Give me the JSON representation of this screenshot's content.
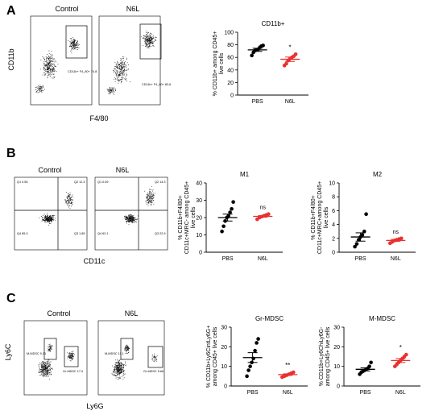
{
  "panels": [
    {
      "letter": "A"
    },
    {
      "letter": "B"
    },
    {
      "letter": "C"
    }
  ],
  "flow": {
    "A": {
      "conditions": [
        "Control",
        "N6L"
      ],
      "xlabel": "F4/80",
      "ylabel": "CD11b",
      "gate_labels": [
        "CD11b+ F4_80+ 74.8",
        "CD11b+ F4_80+ 83.6"
      ]
    },
    "B": {
      "conditions": [
        "Control",
        "N6L"
      ],
      "xlabel": "CD11c",
      "ylabel": "",
      "quadrants_control": [
        "Q1 0.55",
        "Q2 12.3",
        "Q4 85.3",
        "Q3 1.85"
      ],
      "quadrants_n6l": [
        "Q1 0.59",
        "Q2 14.3",
        "Q4 62.1",
        "Q3 22.9"
      ]
    },
    "C": {
      "conditions": [
        "Control",
        "N6L"
      ],
      "xlabel": "Ly6G",
      "ylabel": "Ly6C",
      "gate_labels_control": [
        "M-MDSC 9.21",
        "Gr-MDSC 17.0"
      ],
      "gate_labels_n6l": [
        "M-MDSC 11.1",
        "Gr-MDSC 5.66"
      ]
    }
  },
  "colors": {
    "pbs": "#000000",
    "n6l": "#e8312f"
  },
  "chart_data": [
    {
      "type": "scatter",
      "id": "cd11b",
      "title": "CD11b+",
      "ylabel": "% CD11b+ among CD45+ live cells",
      "categories": [
        "PBS",
        "N6L"
      ],
      "ylim": [
        0,
        100
      ],
      "yticks": [
        0,
        20,
        40,
        60,
        80,
        100
      ],
      "series": [
        {
          "name": "PBS",
          "values": [
            63,
            68,
            71,
            72,
            73,
            76,
            78,
            79
          ],
          "mean": 72,
          "sem": 2.5,
          "color": "#000000"
        },
        {
          "name": "N6L",
          "values": [
            47,
            50,
            55,
            58,
            60,
            62,
            65
          ],
          "mean": 57,
          "sem": 3.5,
          "color": "#e8312f"
        }
      ],
      "annotations": {
        "N6L": "*"
      }
    },
    {
      "type": "scatter",
      "id": "m1",
      "title": "M1",
      "ylabel": "% CD11b+F4/80+ CD11c+MRC- among CD45+ live cells",
      "categories": [
        "PBS",
        "N6L"
      ],
      "ylim": [
        0,
        40
      ],
      "yticks": [
        0,
        10,
        20,
        30,
        40
      ],
      "series": [
        {
          "name": "PBS",
          "values": [
            12,
            15,
            18,
            20,
            21,
            23,
            25,
            29
          ],
          "mean": 20,
          "sem": 2,
          "color": "#000000"
        },
        {
          "name": "N6L",
          "values": [
            19,
            20,
            20.5,
            21,
            21.5,
            22
          ],
          "mean": 20.7,
          "sem": 0.5,
          "color": "#e8312f"
        }
      ],
      "annotations": {
        "N6L": "ns"
      }
    },
    {
      "type": "scatter",
      "id": "m2",
      "title": "M2",
      "ylabel": "% CD11b+F4/80+ CD11c+MRC+among CD45+ live cells",
      "categories": [
        "PBS",
        "N6L"
      ],
      "ylim": [
        0,
        10
      ],
      "yticks": [
        0,
        2,
        4,
        6,
        8,
        10
      ],
      "series": [
        {
          "name": "PBS",
          "values": [
            0.8,
            1.2,
            1.8,
            2.2,
            2.5,
            3.0,
            5.5
          ],
          "mean": 2.2,
          "sem": 0.6,
          "color": "#000000"
        },
        {
          "name": "N6L",
          "values": [
            1.3,
            1.5,
            1.7,
            1.8,
            1.9,
            2.0
          ],
          "mean": 1.7,
          "sem": 0.15,
          "color": "#e8312f"
        }
      ],
      "annotations": {
        "N6L": "ns"
      }
    },
    {
      "type": "scatter",
      "id": "grmdsc",
      "title": "Gr-MDSC",
      "ylabel": "% CD11b+Ly6CintLy6G+ among CD45+ live cells",
      "categories": [
        "PBS",
        "N6L"
      ],
      "ylim": [
        0,
        30
      ],
      "yticks": [
        0,
        10,
        20,
        30
      ],
      "series": [
        {
          "name": "PBS",
          "values": [
            5,
            8,
            10,
            12,
            14,
            18,
            22,
            24
          ],
          "mean": 14.5,
          "sem": 2.5,
          "color": "#000000"
        },
        {
          "name": "N6L",
          "values": [
            4.5,
            5,
            5.5,
            6,
            6.5,
            7
          ],
          "mean": 5.8,
          "sem": 0.4,
          "color": "#e8312f"
        }
      ],
      "annotations": {
        "N6L": "**"
      }
    },
    {
      "type": "scatter",
      "id": "mmdsc",
      "title": "M-MDSC",
      "ylabel": "% CD11b+Ly6ChiLy6G- among CD45+ live cells",
      "categories": [
        "PBS",
        "N6L"
      ],
      "ylim": [
        0,
        30
      ],
      "yticks": [
        0,
        10,
        20,
        30
      ],
      "series": [
        {
          "name": "PBS",
          "values": [
            6,
            7,
            7.5,
            8,
            8.5,
            9,
            10,
            12
          ],
          "mean": 8.5,
          "sem": 0.8,
          "color": "#000000"
        },
        {
          "name": "N6L",
          "values": [
            10,
            11,
            12,
            13,
            14,
            15,
            16
          ],
          "mean": 13,
          "sem": 1,
          "color": "#e8312f"
        }
      ],
      "annotations": {
        "N6L": "*"
      }
    }
  ]
}
